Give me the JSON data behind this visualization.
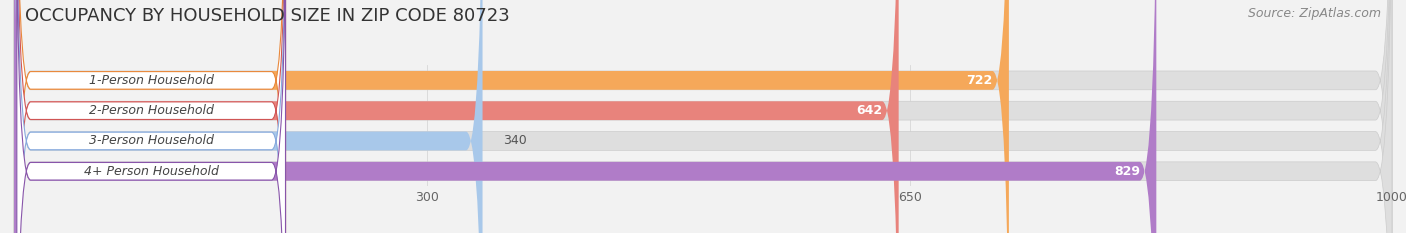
{
  "title": "OCCUPANCY BY HOUSEHOLD SIZE IN ZIP CODE 80723",
  "source": "Source: ZipAtlas.com",
  "categories": [
    "1-Person Household",
    "2-Person Household",
    "3-Person Household",
    "4+ Person Household"
  ],
  "values": [
    722,
    642,
    340,
    829
  ],
  "bar_colors": [
    "#F5A85A",
    "#E8837C",
    "#A8C8EA",
    "#B07CC8"
  ],
  "label_pill_border_colors": [
    "#E8873A",
    "#D05555",
    "#88AADD",
    "#8855AA"
  ],
  "xlim_max": 1000,
  "xticks": [
    300,
    650,
    1000
  ],
  "bar_height": 0.62,
  "background_color": "#F2F2F2",
  "bar_bg_color": "#E8E8E8",
  "label_pill_color": "#FFFFFF",
  "title_fontsize": 13,
  "source_fontsize": 9,
  "label_fontsize": 9,
  "value_fontsize": 9,
  "tick_fontsize": 9
}
